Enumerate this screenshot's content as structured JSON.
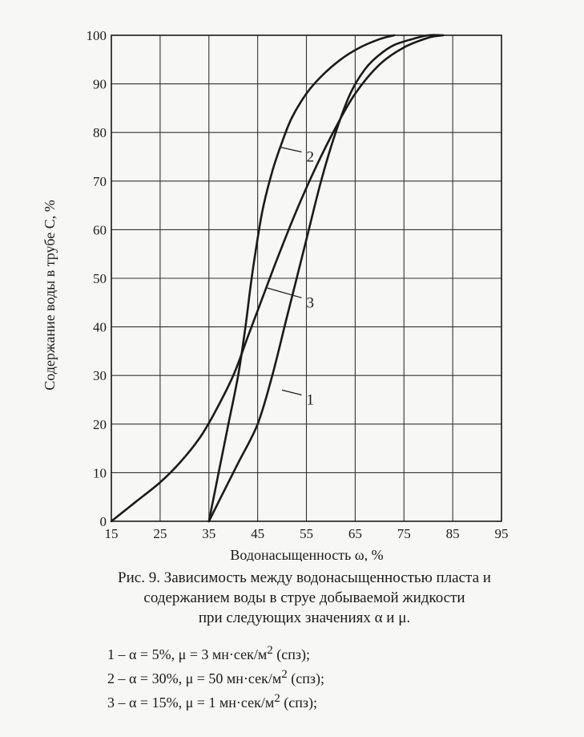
{
  "chart_data": {
    "type": "line",
    "xlabel": "Водонасыщенность ω, %",
    "ylabel": "Содержание воды в трубе С, %",
    "xlim": [
      15,
      95
    ],
    "ylim": [
      0,
      100
    ],
    "x_ticks": [
      "15",
      "25",
      "35",
      "45",
      "55",
      "65",
      "75",
      "85",
      "95"
    ],
    "y_ticks": [
      "0",
      "10",
      "20",
      "30",
      "40",
      "50",
      "60",
      "70",
      "80",
      "90",
      "100"
    ],
    "grid": true,
    "series": [
      {
        "name": "1",
        "x": [
          35,
          38,
          41,
          45,
          48,
          51,
          55,
          58,
          61,
          64,
          67,
          70,
          73,
          77,
          80,
          83
        ],
        "y": [
          0,
          6,
          12,
          20,
          30,
          42,
          58,
          70,
          80,
          88,
          93,
          96,
          98,
          99.3,
          100,
          100
        ]
      },
      {
        "name": "2",
        "x": [
          35,
          37,
          39,
          41,
          42.5,
          43.5,
          44.5,
          46,
          48,
          50,
          52,
          55,
          58,
          62,
          66,
          70,
          73
        ],
        "y": [
          0,
          10,
          20,
          30,
          40,
          48,
          55,
          64,
          72,
          78,
          83,
          88,
          91.5,
          95,
          97.5,
          99.2,
          100
        ]
      },
      {
        "name": "3",
        "x": [
          15,
          20,
          25,
          29,
          33,
          36,
          40,
          43,
          46,
          49,
          53,
          57,
          61,
          65,
          70,
          75,
          80,
          83
        ],
        "y": [
          0,
          4,
          8,
          12,
          17,
          22,
          30,
          38,
          46,
          54,
          64,
          73,
          81,
          88,
          94,
          97.5,
          99.5,
          100
        ]
      }
    ],
    "curve_labels": [
      {
        "text": "1",
        "at": [
          55,
          25
        ],
        "anchor": [
          50,
          27
        ]
      },
      {
        "text": "2",
        "at": [
          55,
          75
        ],
        "anchor": [
          49.5,
          77
        ]
      },
      {
        "text": "3",
        "at": [
          55,
          45
        ],
        "anchor": [
          47,
          48
        ]
      }
    ]
  },
  "caption": {
    "line1": "Рис. 9. Зависимость между водонасыщенностью пласта и",
    "line2": "содержанием воды в струе добываемой жидкости",
    "line3": "при следующих значениях α и μ."
  },
  "legend": [
    {
      "prefix": "1 – α = 5%, μ = 3 мн·сек/м",
      "sup": "2",
      "suffix": " (спз);"
    },
    {
      "prefix": "2 – α = 30%, μ = 50 мн·сек/м",
      "sup": "2",
      "suffix": " (спз);"
    },
    {
      "prefix": "3 – α = 15%, μ = 1 мн·сек/м",
      "sup": "2",
      "suffix": " (спз);"
    }
  ],
  "colors": {
    "ink": "#1a1a1a",
    "grid": "#333333",
    "paper": "#f7f7f5"
  }
}
